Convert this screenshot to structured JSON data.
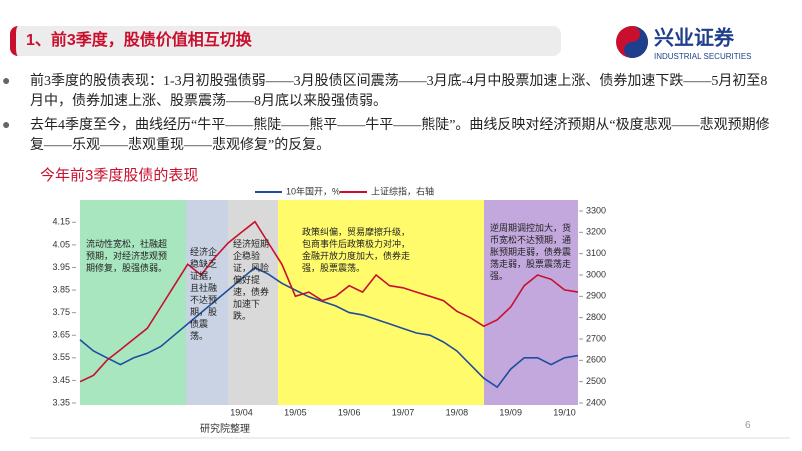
{
  "header": {
    "title": "1、前3季度，股债价值相互切换"
  },
  "logo": {
    "name": "兴业证券",
    "english": "INDUSTRIAL SECURITIES"
  },
  "bullets": [
    "前3季度的股债表现：1-3月初股强债弱——3月股债区间震荡——3月底-4月中股票加速上涨、债券加速下跌——5月初至8月中，债券加速上涨、股票震荡——8月底以来股强债弱。",
    "去年4季度至今，曲线经历“牛平——熊陡——熊平——牛平——熊陡”。曲线反映对经济预期从“极度悲观——悲观预期修复——乐观——悲观重现——悲观修复”的反复。"
  ],
  "page_number": 6,
  "chart_data": {
    "type": "line",
    "title": "今年前3季度股债的表现",
    "categories": [
      null,
      null,
      null,
      null,
      null,
      null,
      null,
      null,
      null,
      null,
      null,
      null,
      "19/04",
      null,
      null,
      null,
      "19/05",
      null,
      null,
      null,
      "19/06",
      null,
      null,
      null,
      "19/07",
      null,
      null,
      null,
      "19/08",
      null,
      null,
      null,
      "19/09",
      null,
      null,
      null,
      "19/10",
      null
    ],
    "series": [
      {
        "name": "10年国开，%",
        "color": "#1f4e9c",
        "values": [
          3.63,
          3.58,
          3.55,
          3.52,
          3.55,
          3.57,
          3.6,
          3.65,
          3.7,
          3.75,
          3.8,
          3.85,
          3.9,
          3.95,
          3.92,
          3.88,
          3.85,
          3.82,
          3.8,
          3.78,
          3.75,
          3.74,
          3.72,
          3.7,
          3.68,
          3.66,
          3.65,
          3.62,
          3.58,
          3.52,
          3.46,
          3.42,
          3.5,
          3.55,
          3.55,
          3.52,
          3.55,
          3.56
        ]
      },
      {
        "name": "上证综指，右轴",
        "color": "#c8102e",
        "axis": "y2",
        "values": [
          2500,
          2530,
          2600,
          2650,
          2700,
          2750,
          2850,
          2950,
          3050,
          3000,
          3080,
          3150,
          3200,
          3250,
          3150,
          3050,
          2900,
          2920,
          2880,
          2900,
          2950,
          2920,
          3000,
          2950,
          2940,
          2920,
          2900,
          2880,
          2830,
          2800,
          2760,
          2790,
          2850,
          2950,
          3000,
          2980,
          2930,
          2920
        ]
      }
    ],
    "ylim": [
      3.35,
      4.2
    ],
    "yticks": [
      3.35,
      3.45,
      3.55,
      3.65,
      3.75,
      3.85,
      3.95,
      4.05,
      4.15
    ],
    "y2lim": [
      2400,
      3300
    ],
    "y2ticks": [
      2400,
      2500,
      2600,
      2700,
      2800,
      2900,
      3000,
      3100,
      3200,
      3300
    ],
    "annotations": [
      "流动性宽松，社融超预期，对经济悲观预期修复，股强债弱。",
      "经济企稳缺乏证据，且社融不达预期，股债震荡。",
      "经济短期企稳验证，风险偏好提速，债券加速下跌。",
      "政策纠偏，贸易摩擦升级，包商事件后政策极力对冲，金融开放力度加大，债券走强，股票震荡。",
      "逆周期调控加大，货币宽松不达预期，通胀预期走弱，债券震荡走弱，股票震荡走强。"
    ],
    "source": "研究院整理"
  }
}
